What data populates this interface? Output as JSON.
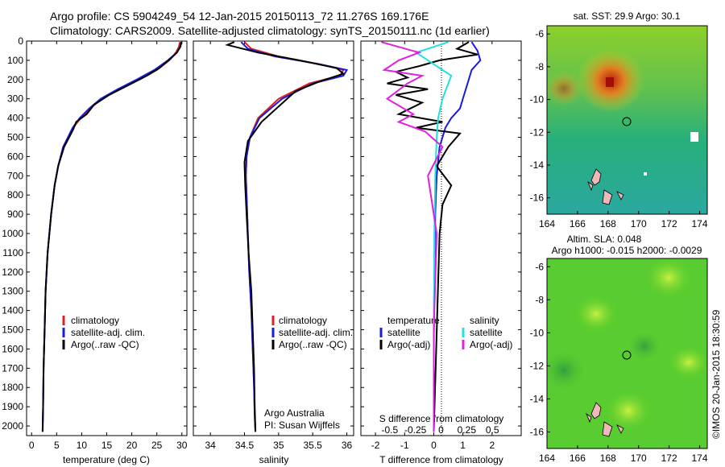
{
  "header": {
    "line1": "Argo profile: CS 5904249_54 12-Jan-2015 20150113_72 11.276S 169.176E",
    "line2": "Climatology: CARS2009. Satellite-adjusted climatology: synTS_20150111.nc (1d earlier)"
  },
  "colors": {
    "climatology": "#e02020",
    "satellite": "#1a1ae0",
    "argo": "#000000",
    "sat_salinity": "#20e0e0",
    "argo_salinity": "#e020e0"
  },
  "chart_data": [
    {
      "type": "line",
      "panel": "temperature",
      "xlabel": "temperature (deg C)",
      "ylabel": "",
      "xlim": [
        -1,
        31
      ],
      "ylim": [
        2050,
        0
      ],
      "xticks": [
        0,
        5,
        10,
        15,
        20,
        25,
        30
      ],
      "yticks": [
        0,
        100,
        200,
        300,
        400,
        500,
        600,
        700,
        800,
        900,
        1000,
        1100,
        1200,
        1300,
        1400,
        1500,
        1600,
        1700,
        1800,
        1900,
        2000
      ],
      "legend": [
        "climatology",
        "satellite-adj. clim.",
        "Argo(..raw -QC)"
      ],
      "series": [
        {
          "name": "climatology",
          "color_key": "climatology",
          "x": [
            29.6,
            29.4,
            28.8,
            27.5,
            25,
            21.5,
            17.5,
            14,
            11.7,
            9.8,
            8.3,
            6.3,
            5.3,
            4.6,
            3.9,
            3.2,
            2.8,
            2.6,
            2.4,
            2.3,
            2.2
          ],
          "y": [
            5,
            30,
            60,
            100,
            150,
            200,
            250,
            300,
            350,
            400,
            450,
            550,
            650,
            750,
            900,
            1100,
            1300,
            1500,
            1700,
            1900,
            2030
          ]
        },
        {
          "name": "satellite-adj. clim.",
          "color_key": "satellite",
          "x": [
            29.9,
            29.6,
            29,
            27.2,
            24.5,
            21,
            17.2,
            13.8,
            11.5,
            9.6,
            8.2,
            6.3,
            5.3,
            4.6,
            3.9,
            3.2,
            2.8,
            2.6,
            2.4,
            2.3,
            2.2
          ],
          "y": [
            5,
            30,
            60,
            100,
            150,
            200,
            250,
            300,
            350,
            400,
            450,
            550,
            650,
            750,
            900,
            1100,
            1300,
            1500,
            1700,
            1900,
            2030
          ]
        },
        {
          "name": "Argo(..raw -QC)",
          "color_key": "argo",
          "x": [
            29.9,
            29.7,
            29,
            27.8,
            25.5,
            23,
            18.5,
            15.5,
            12.5,
            11,
            8.9,
            8.3,
            6.5,
            5.3,
            4.6,
            3.9,
            3.2,
            2.8,
            2.6,
            2.4,
            2.3,
            2.2
          ],
          "y": [
            5,
            30,
            60,
            90,
            140,
            180,
            240,
            280,
            330,
            380,
            420,
            460,
            550,
            650,
            750,
            900,
            1100,
            1300,
            1500,
            1700,
            1900,
            2030
          ]
        }
      ]
    },
    {
      "type": "line",
      "panel": "salinity",
      "xlabel": "salinity",
      "ylabel": "",
      "xlim": [
        33.75,
        36.1
      ],
      "ylim": [
        2050,
        0
      ],
      "xticks": [
        34,
        34.5,
        35,
        35.5,
        36
      ],
      "legend": [
        "climatology",
        "satellite-adj. clim.",
        "Argo(..raw -QC)"
      ],
      "annotation": [
        "Argo Australia",
        "PI: Susan Wijffels"
      ],
      "series": [
        {
          "name": "climatology",
          "color_key": "climatology",
          "x": [
            34.5,
            34.6,
            35.0,
            35.6,
            35.95,
            35.9,
            35.45,
            35.0,
            34.7,
            34.58,
            34.53,
            34.52,
            34.53,
            34.55,
            34.57,
            34.6,
            34.62,
            34.64,
            34.65,
            34.66
          ],
          "y": [
            5,
            40,
            80,
            120,
            150,
            180,
            220,
            300,
            400,
            500,
            600,
            700,
            800,
            1000,
            1200,
            1400,
            1600,
            1800,
            1950,
            2030
          ]
        },
        {
          "name": "satellite-adj. clim.",
          "color_key": "satellite",
          "x": [
            34.45,
            34.55,
            34.95,
            35.6,
            36.0,
            35.95,
            35.5,
            35.05,
            34.72,
            34.58,
            34.53,
            34.52,
            34.53,
            34.55,
            34.57,
            34.6,
            34.62,
            34.64,
            34.65,
            34.66
          ],
          "y": [
            5,
            40,
            80,
            120,
            150,
            180,
            220,
            300,
            400,
            500,
            600,
            700,
            800,
            1000,
            1200,
            1400,
            1600,
            1800,
            1950,
            2030
          ]
        },
        {
          "name": "Argo(..raw -QC)",
          "color_key": "argo",
          "x": [
            34.35,
            34.25,
            34.7,
            35.3,
            35.85,
            35.95,
            35.6,
            35.25,
            35.0,
            34.75,
            34.55,
            34.5,
            34.51,
            34.53,
            34.56,
            34.6,
            34.62,
            34.64,
            34.65,
            34.66
          ],
          "y": [
            5,
            20,
            60,
            100,
            140,
            170,
            210,
            260,
            340,
            420,
            520,
            630,
            750,
            900,
            1100,
            1300,
            1500,
            1700,
            1900,
            2030
          ]
        }
      ]
    },
    {
      "type": "line",
      "panel": "difference",
      "xlabel": "T difference from climatology",
      "xlabel_top": "S difference from climatology",
      "ylabel": "",
      "xlim": [
        -2.5,
        3
      ],
      "ylim": [
        2050,
        0
      ],
      "xticks": [
        -2,
        -1,
        0,
        1,
        2
      ],
      "sticks": [
        -0.5,
        -0.25,
        0,
        0.25,
        0.5
      ],
      "legend_left_title": "temperature",
      "legend_right_title": "salinity",
      "legend": [
        "satellite",
        "Argo(-adj)",
        "satellite",
        "Argo(-adj)"
      ],
      "series": [
        {
          "name": "satellite",
          "group": "temperature",
          "color_key": "satellite",
          "x": [
            1.3,
            1.5,
            1.6,
            1.3,
            1.2,
            1.0,
            0.9,
            0.6,
            0.4,
            0.2,
            0.1,
            0.05,
            0.02,
            0.0,
            0.0
          ],
          "y": [
            5,
            50,
            100,
            150,
            200,
            300,
            350,
            400,
            450,
            550,
            700,
            900,
            1200,
            1600,
            2030
          ]
        },
        {
          "name": "Argo(-adj)",
          "group": "temperature",
          "color_key": "argo",
          "x": [
            1.2,
            0.8,
            1.5,
            0.2,
            -0.5,
            -1.3,
            -0.9,
            -1.6,
            -0.2,
            -1.3,
            -0.4,
            -1.2,
            0.3,
            -0.6,
            0.9,
            0.5,
            0.1,
            0.6,
            0.3,
            0.2,
            0.0
          ],
          "y": [
            5,
            40,
            70,
            100,
            130,
            160,
            190,
            220,
            250,
            280,
            320,
            380,
            420,
            450,
            480,
            550,
            650,
            750,
            850,
            1000,
            2030
          ]
        },
        {
          "name": "satellite",
          "group": "salinity",
          "color_key": "sat_salinity",
          "x": [
            0.5,
            -0.6,
            -0.2,
            0.2,
            0.6,
            0.3,
            0.15,
            0.1,
            0.05,
            0.02,
            0.0,
            0.0
          ],
          "y": [
            5,
            60,
            100,
            140,
            180,
            300,
            400,
            500,
            700,
            1000,
            1500,
            2030
          ]
        },
        {
          "name": "Argo(-adj)",
          "group": "salinity",
          "color_key": "argo_salinity",
          "x": [
            -1.8,
            -0.5,
            -1.2,
            -1.7,
            -0.4,
            -0.9,
            -1.6,
            -0.7,
            -1.2,
            -0.3,
            0.3,
            -0.2,
            0.1,
            0.0,
            0.0
          ],
          "y": [
            5,
            60,
            100,
            150,
            180,
            220,
            300,
            380,
            420,
            470,
            550,
            700,
            1000,
            1500,
            2030
          ]
        }
      ]
    },
    {
      "type": "heatmap",
      "panel": "sst_map",
      "title": "sat. SST: 29.9  Argo: 30.1",
      "xlim": [
        164,
        174.5
      ],
      "ylim": [
        -17,
        -5.5
      ],
      "xticks": [
        164,
        166,
        168,
        170,
        172,
        174
      ],
      "yticks": [
        -6,
        -8,
        -10,
        -12,
        -14,
        -16
      ],
      "marker": {
        "lon": 169.176,
        "lat": -11.276
      }
    },
    {
      "type": "heatmap",
      "panel": "sla_map",
      "title": "Altim. SLA: 0.048",
      "subtitle": "Argo h1000: -0.015  h2000: -0.0029",
      "xlim": [
        164,
        174.5
      ],
      "ylim": [
        -17,
        -5.5
      ],
      "xticks": [
        164,
        166,
        168,
        170,
        172,
        174
      ],
      "yticks": [
        -6,
        -8,
        -10,
        -12,
        -14,
        -16
      ],
      "marker": {
        "lon": 169.176,
        "lat": -11.276
      }
    }
  ],
  "footer": {
    "stamp": "©IMOS 20-Jan-2015 18:30:59"
  }
}
